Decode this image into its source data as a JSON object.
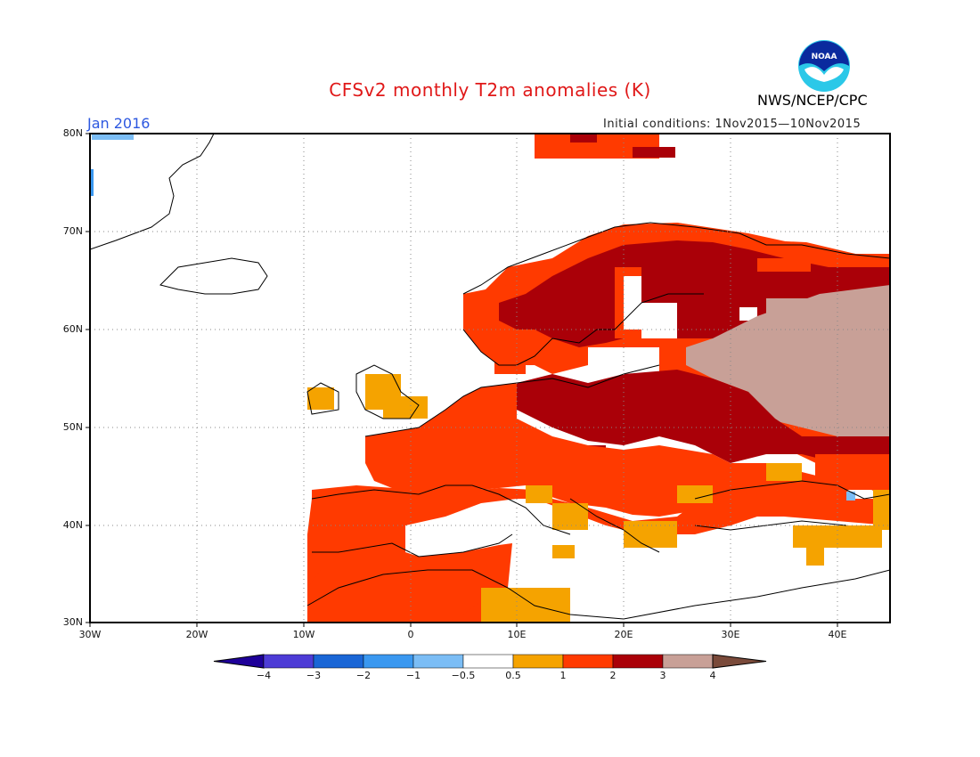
{
  "title": "CFSv2 monthly T2m anomalies (K)",
  "agency": "NWS/NCEP/CPC",
  "logo_text": "NOAA",
  "valid_month": "Jan 2016",
  "initial_conditions": "Initial conditions: 1Nov2015—10Nov2015",
  "map": {
    "lon_range": [
      -30,
      45
    ],
    "lat_range": [
      30,
      80
    ],
    "y_labels": [
      "80N",
      "70N",
      "60N",
      "50N",
      "40N",
      "30N"
    ],
    "x_labels": [
      "30W",
      "20W",
      "10W",
      "0",
      "10E",
      "20E",
      "30E",
      "40E"
    ],
    "gridlines": true
  },
  "colorbar": {
    "levels": [
      "−4",
      "−3",
      "−2",
      "−1",
      "−0.5",
      "0.5",
      "1",
      "2",
      "3",
      "4"
    ],
    "colors": [
      "#1e0099",
      "#4d3cd6",
      "#1a66d6",
      "#3a98f0",
      "#7bbdf5",
      "#ffffff",
      "#f5a300",
      "#ff3a00",
      "#aa0008",
      "#c8a097",
      "#7a4a3a"
    ]
  },
  "anomaly_regions": [
    {
      "name": "far-north-strip",
      "level": "2"
    },
    {
      "name": "scandinavia",
      "level": "3"
    },
    {
      "name": "western-russia",
      "level": "4"
    },
    {
      "name": "central-europe",
      "level": "3"
    },
    {
      "name": "iberia-north-africa",
      "level": "2"
    },
    {
      "name": "british-isles",
      "level": "1"
    },
    {
      "name": "greenland-edge",
      "level": "-1"
    }
  ]
}
